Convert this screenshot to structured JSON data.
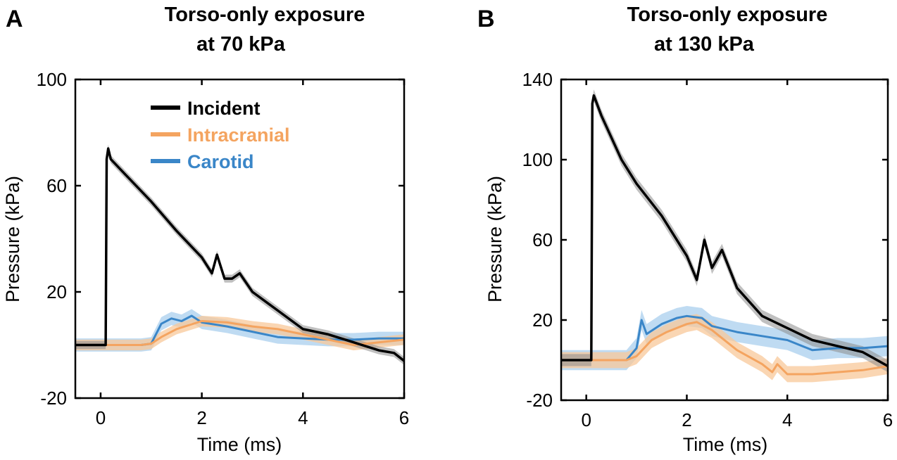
{
  "colors": {
    "incident": "#000000",
    "intracranial": "#f4a460",
    "carotid": "#3a86c8",
    "incident_band": "#8c8c8c",
    "intracranial_band": "#f8c89a",
    "carotid_band": "#a9cfee"
  },
  "chart_data": [
    {
      "panel": "A",
      "type": "line",
      "title_lines": [
        "Torso-only exposure",
        "at 70 kPa"
      ],
      "xlabel": "Time (ms)",
      "ylabel": "Pressure (kPa)",
      "xlim": [
        -0.5,
        6
      ],
      "ylim": [
        -20,
        100
      ],
      "xticks": [
        0,
        2,
        4,
        6
      ],
      "yticks": [
        -20,
        20,
        60,
        100
      ],
      "legend_position": "top-center",
      "series": [
        {
          "name": "Incident",
          "key": "incident",
          "band": 1.5,
          "points": [
            [
              -0.5,
              0
            ],
            [
              0.1,
              0
            ],
            [
              0.12,
              70
            ],
            [
              0.15,
              74
            ],
            [
              0.2,
              70
            ],
            [
              0.5,
              64
            ],
            [
              1.0,
              54
            ],
            [
              1.5,
              43
            ],
            [
              2.0,
              33
            ],
            [
              2.2,
              27
            ],
            [
              2.3,
              34
            ],
            [
              2.45,
              25
            ],
            [
              2.6,
              25
            ],
            [
              2.75,
              27
            ],
            [
              3.0,
              20
            ],
            [
              3.5,
              13
            ],
            [
              4.0,
              6
            ],
            [
              4.5,
              4
            ],
            [
              5.0,
              1
            ],
            [
              5.5,
              -2
            ],
            [
              5.8,
              -3
            ],
            [
              6.0,
              -6
            ]
          ]
        },
        {
          "name": "Intracranial",
          "key": "intracranial",
          "band": 2,
          "points": [
            [
              -0.5,
              0
            ],
            [
              0.8,
              0
            ],
            [
              1.0,
              0.5
            ],
            [
              1.2,
              3
            ],
            [
              1.5,
              6
            ],
            [
              2.0,
              9
            ],
            [
              2.5,
              8.5
            ],
            [
              3.0,
              7
            ],
            [
              3.5,
              6
            ],
            [
              4.0,
              4
            ],
            [
              4.5,
              2
            ],
            [
              5.0,
              0
            ],
            [
              5.5,
              1
            ],
            [
              6.0,
              2
            ]
          ]
        },
        {
          "name": "Carotid",
          "key": "carotid",
          "band": 2.5,
          "points": [
            [
              -0.5,
              0
            ],
            [
              0.8,
              0
            ],
            [
              1.0,
              0.5
            ],
            [
              1.2,
              8
            ],
            [
              1.4,
              10
            ],
            [
              1.6,
              9
            ],
            [
              1.8,
              11
            ],
            [
              2.0,
              8.5
            ],
            [
              2.5,
              7
            ],
            [
              3.0,
              5
            ],
            [
              3.5,
              3
            ],
            [
              4.0,
              2.5
            ],
            [
              4.5,
              2
            ],
            [
              5.0,
              2
            ],
            [
              5.5,
              2.5
            ],
            [
              6.0,
              2.5
            ]
          ]
        }
      ]
    },
    {
      "panel": "B",
      "type": "line",
      "title_lines": [
        "Torso-only exposure",
        "at 130 kPa"
      ],
      "xlabel": "Time (ms)",
      "ylabel": "Pressure (kPa)",
      "xlim": [
        -0.5,
        6
      ],
      "ylim": [
        -20,
        140
      ],
      "xticks": [
        0,
        2,
        4,
        6
      ],
      "yticks": [
        -20,
        20,
        60,
        100,
        140
      ],
      "legend_position": "none",
      "series": [
        {
          "name": "Incident",
          "key": "incident",
          "band": 3,
          "points": [
            [
              -0.5,
              0
            ],
            [
              0.1,
              0
            ],
            [
              0.12,
              128
            ],
            [
              0.15,
              132
            ],
            [
              0.3,
              122
            ],
            [
              0.7,
              100
            ],
            [
              1.0,
              88
            ],
            [
              1.5,
              72
            ],
            [
              2.0,
              52
            ],
            [
              2.2,
              40
            ],
            [
              2.35,
              60
            ],
            [
              2.5,
              46
            ],
            [
              2.7,
              55
            ],
            [
              3.0,
              36
            ],
            [
              3.5,
              22
            ],
            [
              4.0,
              16
            ],
            [
              4.5,
              10
            ],
            [
              5.0,
              7
            ],
            [
              5.5,
              4
            ],
            [
              6.0,
              -3
            ]
          ]
        },
        {
          "name": "Intracranial",
          "key": "intracranial",
          "band": 4,
          "points": [
            [
              -0.5,
              0
            ],
            [
              0.8,
              0
            ],
            [
              1.0,
              2
            ],
            [
              1.3,
              10
            ],
            [
              1.6,
              14
            ],
            [
              2.0,
              18
            ],
            [
              2.2,
              19
            ],
            [
              2.5,
              15
            ],
            [
              3.0,
              5
            ],
            [
              3.5,
              -2
            ],
            [
              3.7,
              -6
            ],
            [
              3.8,
              -2
            ],
            [
              4.0,
              -7
            ],
            [
              4.5,
              -7
            ],
            [
              5.0,
              -6
            ],
            [
              5.5,
              -5
            ],
            [
              6.0,
              -3
            ]
          ]
        },
        {
          "name": "Carotid",
          "key": "carotid",
          "band": 5,
          "points": [
            [
              -0.5,
              0
            ],
            [
              0.8,
              0
            ],
            [
              1.0,
              6
            ],
            [
              1.1,
              20
            ],
            [
              1.2,
              13
            ],
            [
              1.5,
              18
            ],
            [
              1.8,
              21
            ],
            [
              2.0,
              22
            ],
            [
              2.3,
              21
            ],
            [
              2.5,
              17
            ],
            [
              3.0,
              14
            ],
            [
              3.5,
              12
            ],
            [
              4.0,
              10
            ],
            [
              4.5,
              5
            ],
            [
              5.0,
              6
            ],
            [
              5.5,
              6
            ],
            [
              6.0,
              7
            ]
          ]
        }
      ]
    }
  ]
}
